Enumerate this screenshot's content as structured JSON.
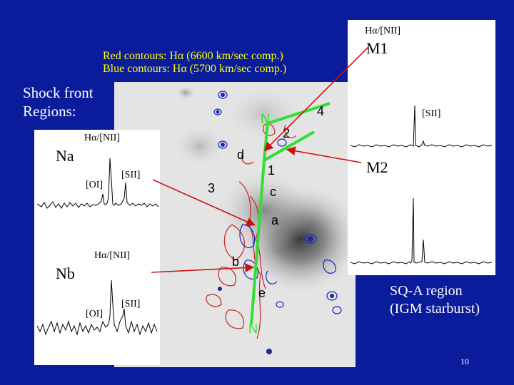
{
  "captions": {
    "red": "Red contours: Hα (6600 km/sec comp.)",
    "blue": "Blue contours: Hα (5700 km/sec comp.)",
    "shock_line1": "Shock front",
    "shock_line2": "Regions:",
    "sq_line1": "SQ-A region",
    "sq_line2": "(IGM starburst)"
  },
  "spectra": {
    "m1": {
      "name": "M1",
      "line1": "Hα/[NII]",
      "line2": "[SII]"
    },
    "m2": {
      "name": "M2"
    },
    "na": {
      "name": "Na",
      "line1": "Hα/[NII]",
      "line2": "[SII]",
      "line3": "[OI]"
    },
    "nb": {
      "name": "Nb",
      "line1": "Hα/[NII]",
      "line2": "[SII]",
      "line3": "[OI]"
    }
  },
  "map_labels": {
    "n_top": "N",
    "n_bottom": "N",
    "l1": "1",
    "l2": "2",
    "l3": "3",
    "l4": "4",
    "a": "a",
    "b": "b",
    "c": "c",
    "d": "d",
    "e": "e"
  },
  "slide_number": "10",
  "colors": {
    "background": "#0A1B9C",
    "caption": "#FFFF00",
    "slit": "#33DD33",
    "arrow": "#CC1111",
    "red_contour": "#CC2222",
    "blue_contour": "#1122CC"
  }
}
